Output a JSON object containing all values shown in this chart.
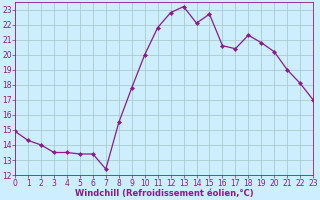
{
  "x": [
    0,
    1,
    2,
    3,
    4,
    5,
    6,
    7,
    8,
    9,
    10,
    11,
    12,
    13,
    14,
    15,
    16,
    17,
    18,
    19,
    20,
    21,
    22,
    23
  ],
  "y": [
    14.9,
    14.3,
    14.0,
    13.5,
    13.5,
    13.4,
    13.4,
    12.4,
    15.5,
    17.8,
    20.0,
    21.8,
    22.8,
    23.2,
    22.1,
    22.7,
    20.6,
    20.4,
    21.3,
    20.8,
    20.2,
    19.0,
    18.1,
    17.0
  ],
  "line_color": "#8b1a8b",
  "marker": "D",
  "marker_size": 2.2,
  "bg_color": "#cceeff",
  "grid_color": "#aacccc",
  "xlabel": "Windchill (Refroidissement éolien,°C)",
  "xlabel_color": "#8b1a8b",
  "tick_color": "#8b1a8b",
  "ylim": [
    12,
    23.5
  ],
  "yticks": [
    12,
    13,
    14,
    15,
    16,
    17,
    18,
    19,
    20,
    21,
    22,
    23
  ],
  "xlim": [
    0,
    23
  ],
  "xticks": [
    0,
    1,
    2,
    3,
    4,
    5,
    6,
    7,
    8,
    9,
    10,
    11,
    12,
    13,
    14,
    15,
    16,
    17,
    18,
    19,
    20,
    21,
    22,
    23
  ],
  "tick_fontsize": 5.5,
  "xlabel_fontsize": 6.0
}
